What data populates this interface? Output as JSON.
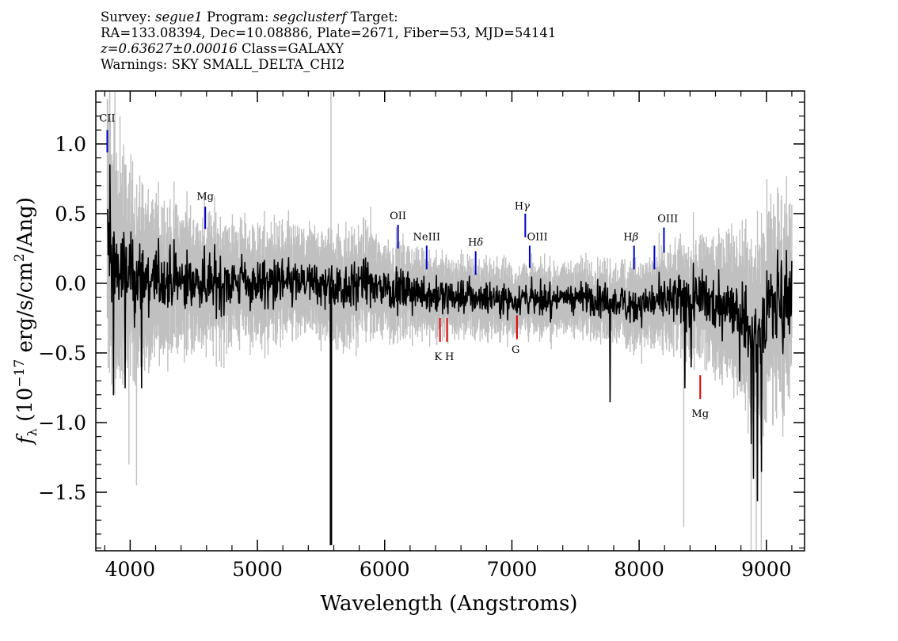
{
  "header": {
    "line1": {
      "survey_label": "Survey: ",
      "survey": "segue1",
      "program_label": " Program: ",
      "program": "segclusterf",
      "target_label": " Target:"
    },
    "line2": "RA=133.08394, Dec=10.08886, Plate=2671, Fiber=53, MJD=54141",
    "line3": {
      "z": "z=0.63627±0.00016",
      "class": " Class=GALAXY"
    },
    "line4": "Warnings: SKY SMALL_DELTA_CHI2"
  },
  "chart_data": {
    "type": "line",
    "title": "",
    "xlabel": "Wavelength (Angstroms)",
    "ylabel": {
      "f": "f",
      "sub": "λ",
      "pre": " (10",
      "exp": "−17",
      "post": " erg/s/cm",
      "exp2": "2",
      "post2": "/Ang)"
    },
    "xlim": [
      3730,
      9300
    ],
    "ylim": [
      -1.92,
      1.38
    ],
    "xticks": [
      4000,
      5000,
      6000,
      7000,
      8000,
      9000
    ],
    "xtick_labels": [
      "4000",
      "5000",
      "6000",
      "7000",
      "8000",
      "9000"
    ],
    "yticks": [
      1.0,
      0.5,
      0.0,
      -0.5,
      -1.0,
      -1.5
    ],
    "ytick_labels": [
      "1.0",
      "0.5",
      "0.0",
      "−0.5",
      "−1.0",
      "−1.5"
    ],
    "grid": false,
    "colors": {
      "flux": "#000000",
      "error": "#c0c0c0",
      "emission": "#0000cc",
      "absorption": "#e00000"
    },
    "series": [
      {
        "role": "flux",
        "x": [
          3820,
          3900,
          4000,
          4100,
          4200,
          4400,
          4600,
          4800,
          5000,
          5200,
          5400,
          5600,
          5800,
          6000,
          6100,
          6200,
          6300,
          6400,
          6500,
          6600,
          6700,
          6800,
          6900,
          7000,
          7100,
          7200,
          7300,
          7400,
          7500,
          7600,
          7700,
          7800,
          7900,
          8000,
          8100,
          8200,
          8300,
          8400,
          8500,
          8600,
          8700,
          8800,
          8900,
          9000,
          9100,
          9200
        ],
        "y": [
          0.3,
          0.1,
          0.05,
          0.03,
          0.02,
          0.02,
          0.01,
          0.01,
          0.0,
          0.0,
          0.0,
          -0.03,
          0.0,
          -0.03,
          -0.05,
          -0.06,
          -0.07,
          -0.09,
          -0.1,
          -0.09,
          -0.1,
          -0.1,
          -0.1,
          -0.12,
          -0.1,
          -0.12,
          -0.12,
          -0.1,
          -0.1,
          -0.1,
          -0.12,
          -0.13,
          -0.15,
          -0.15,
          -0.13,
          -0.12,
          -0.13,
          -0.12,
          -0.12,
          -0.15,
          -0.12,
          -0.2,
          -0.35,
          -0.2,
          -0.1,
          -0.05
        ]
      },
      {
        "role": "error",
        "x": [
          3820,
          3900,
          4000,
          4100,
          4200,
          4400,
          4600,
          4800,
          5000,
          5200,
          5400,
          5600,
          5800,
          6000,
          6200,
          6400,
          6600,
          6800,
          7000,
          7200,
          7400,
          7600,
          7800,
          8000,
          8200,
          8400,
          8600,
          8800,
          9000,
          9200
        ],
        "y": [
          0.6,
          0.5,
          0.42,
          0.38,
          0.34,
          0.3,
          0.27,
          0.25,
          0.24,
          0.23,
          0.22,
          0.25,
          0.22,
          0.2,
          0.18,
          0.17,
          0.16,
          0.16,
          0.15,
          0.15,
          0.15,
          0.15,
          0.16,
          0.18,
          0.2,
          0.24,
          0.28,
          0.34,
          0.45,
          0.4
        ]
      }
    ],
    "features": {
      "flux_spike": {
        "x": 5578,
        "y": -1.88
      },
      "flux_dips": [
        {
          "x": 8360,
          "y": -0.75
        },
        {
          "x": 8410,
          "y": -0.6
        },
        {
          "x": 8790,
          "y": -0.7
        },
        {
          "x": 8880,
          "y": -1.15
        },
        {
          "x": 8900,
          "y": -1.4
        },
        {
          "x": 8930,
          "y": -1.56
        },
        {
          "x": 8960,
          "y": -1.35
        },
        {
          "x": 7770,
          "y": -0.85
        },
        {
          "x": 3840,
          "y": 0.85
        },
        {
          "x": 3870,
          "y": -0.8
        },
        {
          "x": 3960,
          "y": -0.75
        },
        {
          "x": 4090,
          "y": -0.75
        }
      ],
      "error_spikes": [
        {
          "x": 3840,
          "y": 1.38
        },
        {
          "x": 3880,
          "y": 1.38
        },
        {
          "x": 3920,
          "y": 1.2
        },
        {
          "x": 5578,
          "y": 1.38
        },
        {
          "x": 5890,
          "y": 0.55
        },
        {
          "x": 8350,
          "y": -1.75
        },
        {
          "x": 8880,
          "y": -1.92
        },
        {
          "x": 8920,
          "y": -1.92
        },
        {
          "x": 8960,
          "y": -1.92
        },
        {
          "x": 4050,
          "y": -1.45
        },
        {
          "x": 3990,
          "y": -1.3
        }
      ]
    },
    "lines": [
      {
        "label": "CII",
        "greek": "",
        "x": 3820,
        "y0": 0.94,
        "y1": 1.1,
        "kind": "emission",
        "lx": 3820,
        "ly": 1.16
      },
      {
        "label": "Mg",
        "greek": "",
        "x": 4590,
        "y0": 0.39,
        "y1": 0.55,
        "kind": "emission",
        "lx": 4590,
        "ly": 0.6
      },
      {
        "label": "OII",
        "greek": "",
        "x": 6105,
        "y0": 0.25,
        "y1": 0.42,
        "kind": "emission",
        "lx": 6105,
        "ly": 0.46
      },
      {
        "label": "NeIII",
        "greek": "",
        "x": 6330,
        "y0": 0.1,
        "y1": 0.27,
        "kind": "emission",
        "lx": 6330,
        "ly": 0.31
      },
      {
        "label": "H",
        "greek": "δ",
        "x": 6715,
        "y0": 0.06,
        "y1": 0.23,
        "kind": "emission",
        "lx": 6715,
        "ly": 0.27
      },
      {
        "label": "H",
        "greek": "γ",
        "x": 7105,
        "y0": 0.33,
        "y1": 0.5,
        "kind": "emission",
        "lx": 7080,
        "ly": 0.53
      },
      {
        "label": "OIII",
        "greek": "",
        "x": 7140,
        "y0": 0.11,
        "y1": 0.27,
        "kind": "emission",
        "lx": 7200,
        "ly": 0.31
      },
      {
        "label": "H",
        "greek": "β",
        "x": 7960,
        "y0": 0.1,
        "y1": 0.27,
        "kind": "emission",
        "lx": 7935,
        "ly": 0.31
      },
      {
        "label": "",
        "greek": "",
        "x": 8120,
        "y0": 0.1,
        "y1": 0.27,
        "kind": "emission",
        "lx": 8120,
        "ly": 0.31
      },
      {
        "label": "OIII",
        "greek": "",
        "x": 8195,
        "y0": 0.22,
        "y1": 0.4,
        "kind": "emission",
        "lx": 8225,
        "ly": 0.44
      },
      {
        "label": "K",
        "greek": "",
        "x": 6435,
        "y0": -0.42,
        "y1": -0.25,
        "kind": "absorption",
        "lx": 6420,
        "ly": -0.55
      },
      {
        "label": "H",
        "greek": "",
        "x": 6490,
        "y0": -0.42,
        "y1": -0.25,
        "kind": "absorption",
        "lx": 6510,
        "ly": -0.55
      },
      {
        "label": "G",
        "greek": "",
        "x": 7040,
        "y0": -0.4,
        "y1": -0.23,
        "kind": "absorption",
        "lx": 7030,
        "ly": -0.5
      },
      {
        "label": "Mg",
        "greek": "",
        "x": 8480,
        "y0": -0.83,
        "y1": -0.66,
        "kind": "absorption",
        "lx": 8480,
        "ly": -0.96
      }
    ]
  }
}
